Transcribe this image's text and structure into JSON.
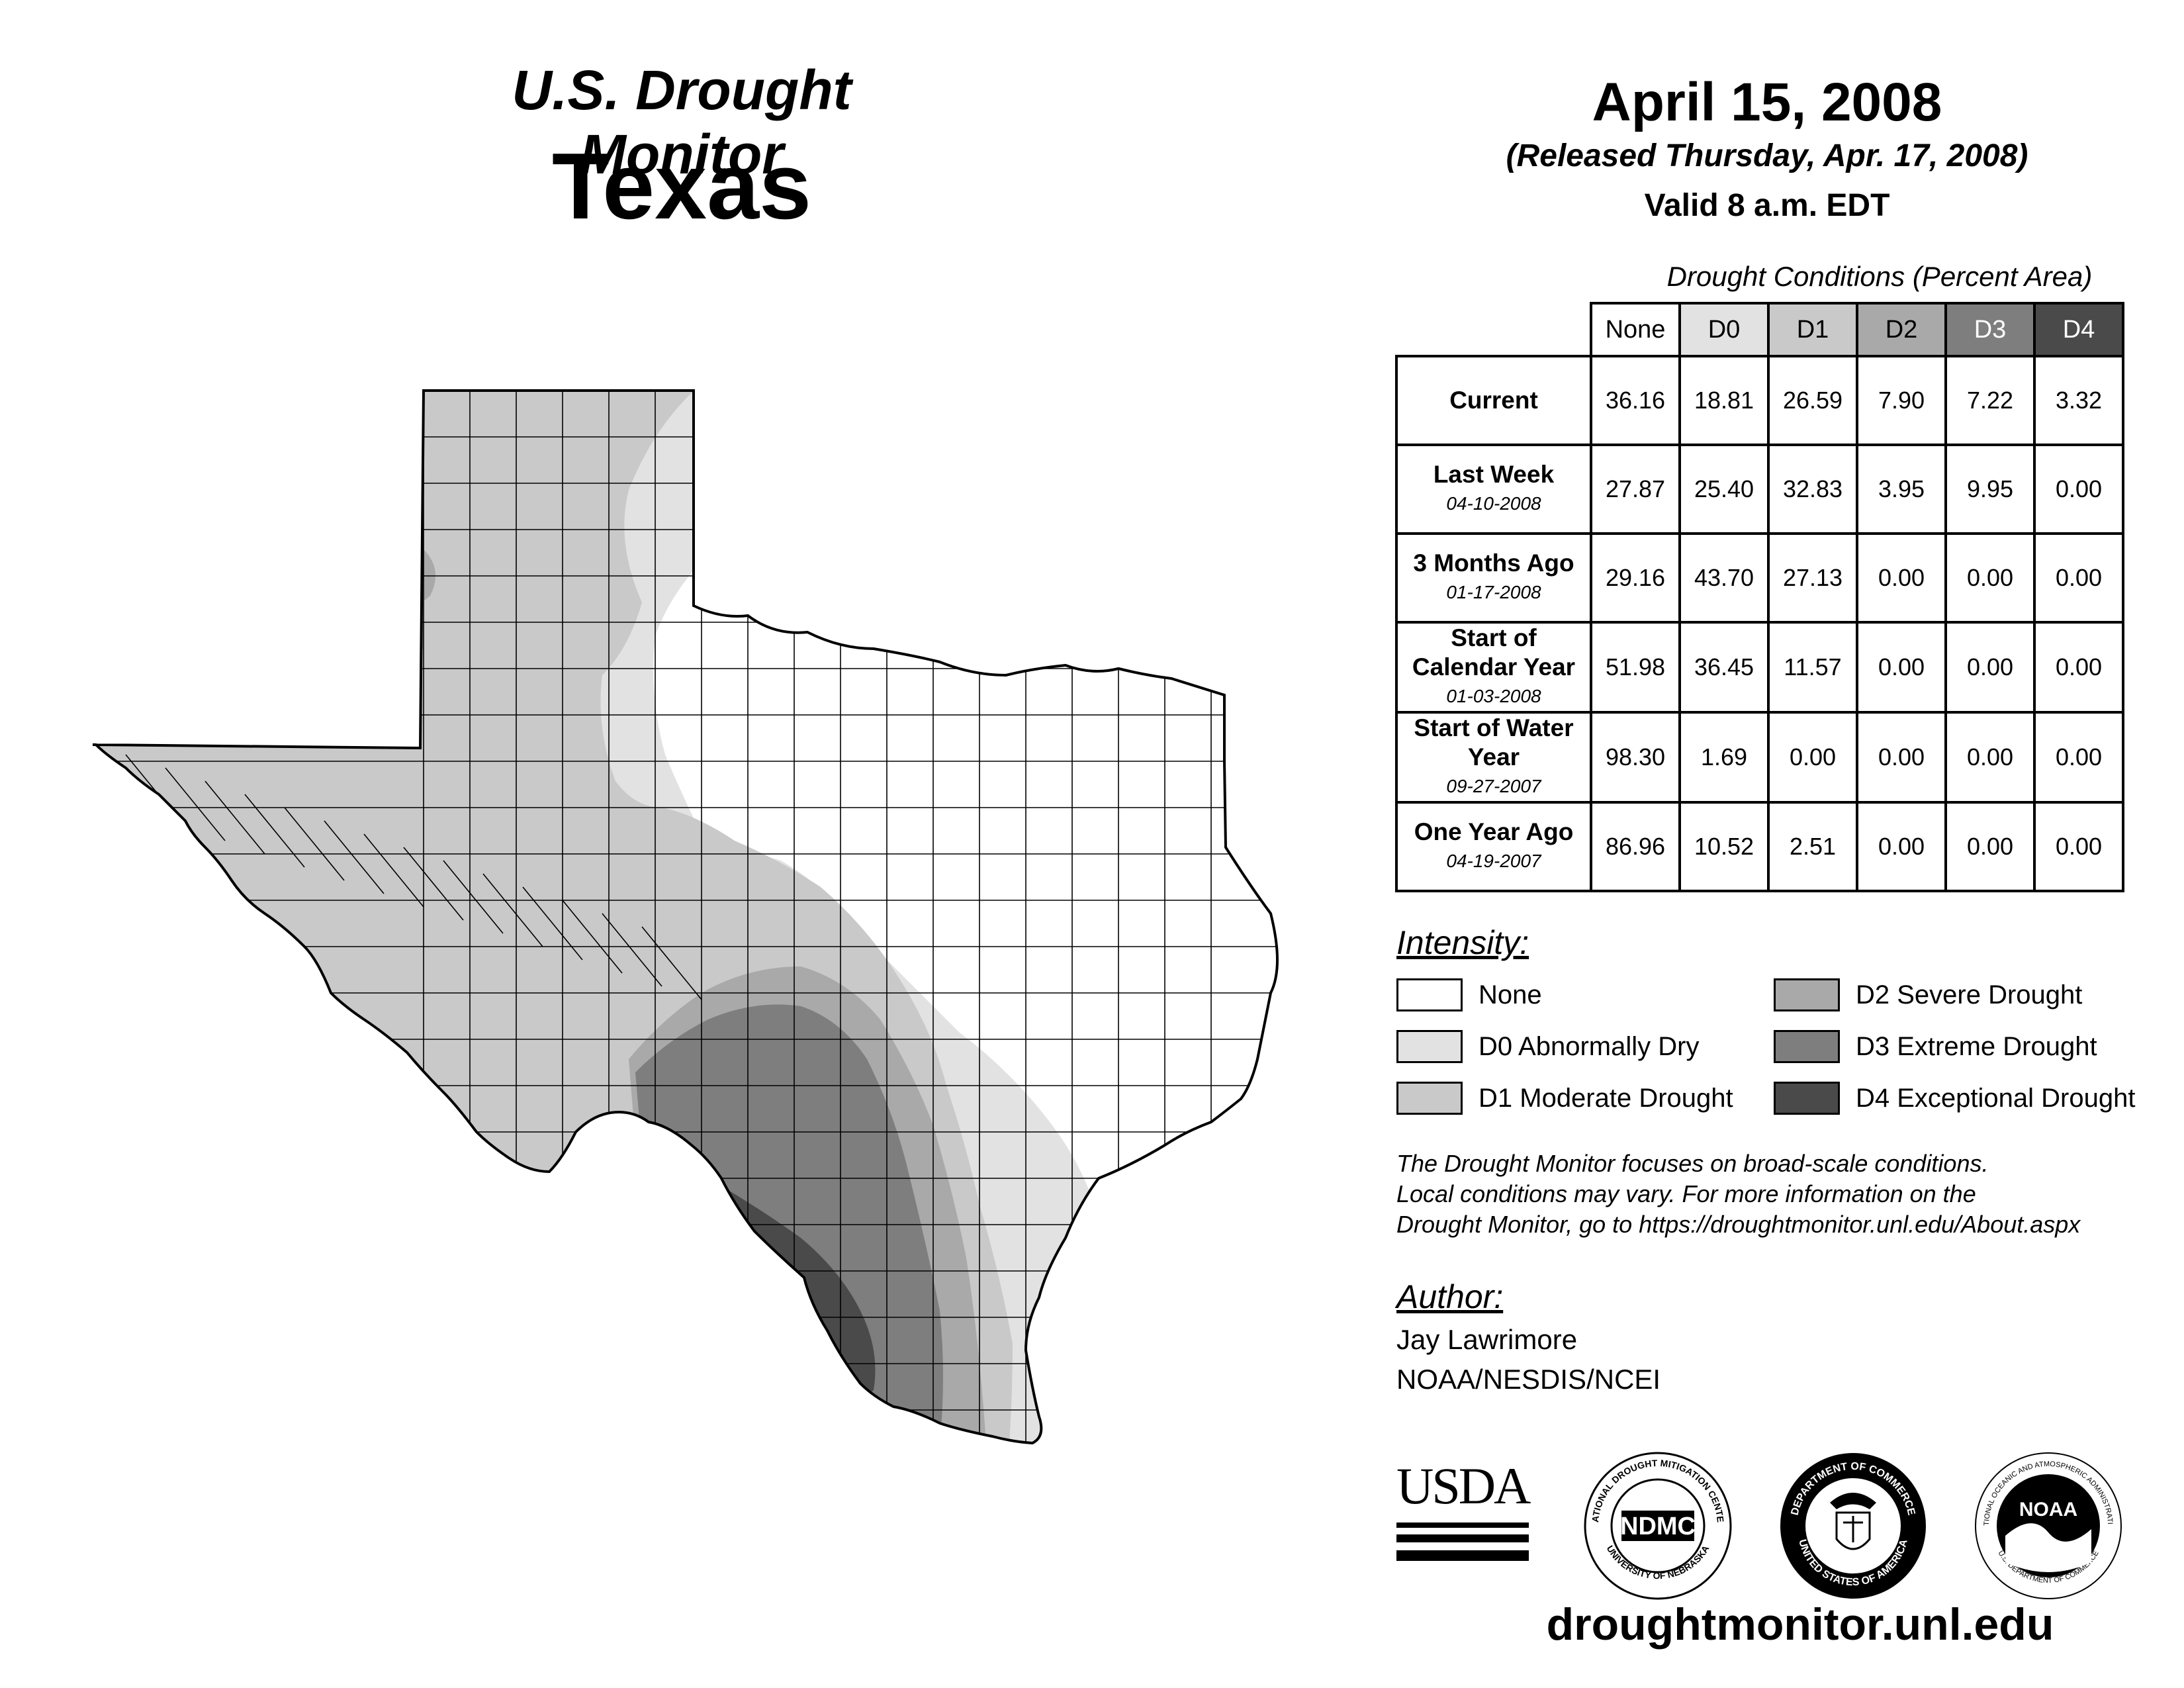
{
  "header": {
    "monitor_title": "U.S. Drought Monitor",
    "state": "Texas",
    "date": "April 15, 2008",
    "released": "(Released Thursday, Apr. 17, 2008)",
    "valid": "Valid 8 a.m. EDT"
  },
  "table": {
    "caption": "Drought Conditions (Percent Area)",
    "columns": [
      "None",
      "D0",
      "D1",
      "D2",
      "D3",
      "D4"
    ],
    "rows": [
      {
        "label": "Current",
        "date": "",
        "values": [
          "36.16",
          "18.81",
          "26.59",
          "7.90",
          "7.22",
          "3.32"
        ]
      },
      {
        "label": "Last Week",
        "date": "04-10-2008",
        "values": [
          "27.87",
          "25.40",
          "32.83",
          "3.95",
          "9.95",
          "0.00"
        ]
      },
      {
        "label": "3 Months Ago",
        "date": "01-17-2008",
        "values": [
          "29.16",
          "43.70",
          "27.13",
          "0.00",
          "0.00",
          "0.00"
        ]
      },
      {
        "label": "Start of Calendar Year",
        "date": "01-03-2008",
        "values": [
          "51.98",
          "36.45",
          "11.57",
          "0.00",
          "0.00",
          "0.00"
        ]
      },
      {
        "label": "Start of Water Year",
        "date": "09-27-2007",
        "values": [
          "98.30",
          "1.69",
          "0.00",
          "0.00",
          "0.00",
          "0.00"
        ]
      },
      {
        "label": "One Year Ago",
        "date": "04-19-2007",
        "values": [
          "86.96",
          "10.52",
          "2.51",
          "0.00",
          "0.00",
          "0.00"
        ]
      }
    ]
  },
  "legend": {
    "title": "Intensity:",
    "items": [
      {
        "label": "None",
        "color": "#ffffff"
      },
      {
        "label": "D0 Abnormally Dry",
        "color": "#e2e2e2"
      },
      {
        "label": "D1 Moderate Drought",
        "color": "#c9c9c9"
      },
      {
        "label": "D2 Severe Drought",
        "color": "#a9a9a9"
      },
      {
        "label": "D3 Extreme Drought",
        "color": "#7e7e7e"
      },
      {
        "label": "D4 Exceptional Drought",
        "color": "#4a4a4a"
      }
    ]
  },
  "disclaimer": {
    "line1": "The Drought Monitor focuses on broad-scale conditions.",
    "line2": "Local conditions may vary. For more information on the",
    "line3": "Drought Monitor, go to https://droughtmonitor.unl.edu/About.aspx"
  },
  "author": {
    "label": "Author:",
    "name": "Jay Lawrimore",
    "org": "NOAA/NESDIS/NCEI"
  },
  "logos": {
    "usda": "USDA",
    "ndmc": "NDMC",
    "ndmc_ring_top": "NATIONAL DROUGHT MITIGATION CENTER",
    "ndmc_ring_bottom": "UNIVERSITY OF NEBRASKA",
    "doc_ring_top": "DEPARTMENT OF COMMERCE",
    "doc_ring_bottom": "UNITED STATES OF AMERICA",
    "noaa": "NOAA",
    "noaa_ring_top": "NATIONAL OCEANIC AND ATMOSPHERIC ADMINISTRATION",
    "noaa_ring_bottom": "U.S. DEPARTMENT OF COMMERCE"
  },
  "website": "droughtmonitor.unl.edu"
}
